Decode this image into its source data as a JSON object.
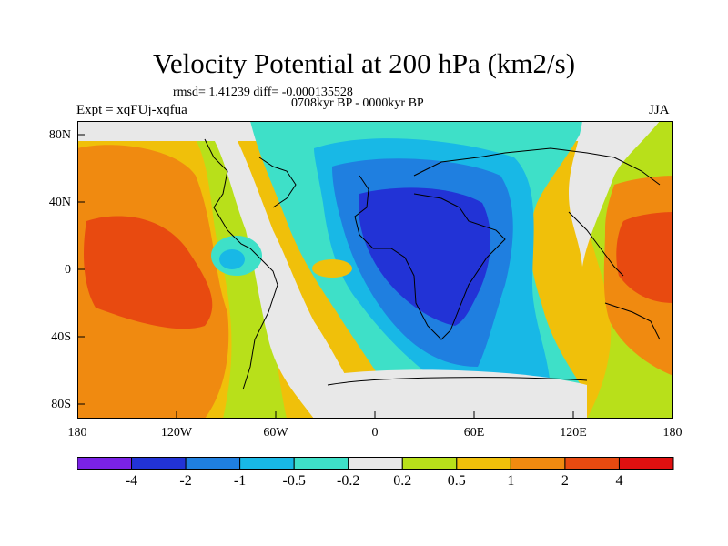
{
  "title": "Velocity Potential at 200 hPa (km2/s)",
  "stats": "rmsd= 1.41239 diff= -0.000135528",
  "period": "0708kyr BP - 0000kyr BP",
  "experiment": "Expt = xqFUj-xqfua",
  "season": "JJA",
  "lat_labels": [
    "80N",
    "40N",
    "0",
    "40S",
    "80S"
  ],
  "lon_labels": [
    "180",
    "120W",
    "60W",
    "0",
    "60E",
    "120E",
    "180"
  ],
  "colorbar": {
    "labels": [
      "-4",
      "-2",
      "-1",
      "-0.5",
      "-0.2",
      "0.2",
      "0.5",
      "1",
      "2",
      "4"
    ],
    "colors": [
      "#7a22e6",
      "#2233d6",
      "#1f7fe0",
      "#18b8e6",
      "#3ee0c8",
      "#e8e8e8",
      "#b8e01a",
      "#f0c00a",
      "#f08a10",
      "#e84a10",
      "#e01010"
    ]
  }
}
